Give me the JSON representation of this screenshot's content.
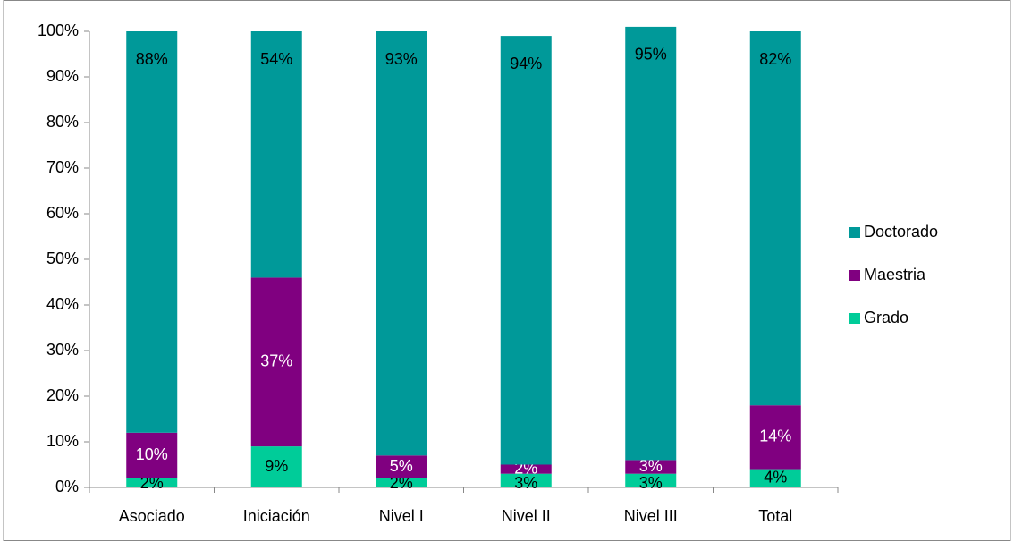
{
  "chart_data": {
    "type": "stacked-bar",
    "categories": [
      "Asociado",
      "Iniciación",
      "Nivel I",
      "Nivel II",
      "Nivel III",
      "Total"
    ],
    "series": [
      {
        "name": "Grado",
        "color": "#00cc99",
        "values": [
          2,
          9,
          2,
          3,
          3,
          4
        ],
        "value_labels": [
          "2%",
          "9%",
          "2%",
          "3%",
          "3%",
          "4%"
        ]
      },
      {
        "name": "Maestria",
        "color": "#800080",
        "values": [
          10,
          37,
          5,
          2,
          3,
          14
        ],
        "value_labels": [
          "10%",
          "37%",
          "5%",
          "2%",
          "3%",
          "14%"
        ]
      },
      {
        "name": "Doctorado",
        "color": "#009999",
        "values": [
          88,
          54,
          93,
          94,
          95,
          82
        ],
        "value_labels": [
          "88%",
          "54%",
          "93%",
          "94%",
          "95%",
          "82%"
        ]
      }
    ],
    "ylim": [
      0,
      100
    ],
    "yticks": [
      {
        "value": 0,
        "label": "0%"
      },
      {
        "value": 10,
        "label": "10%"
      },
      {
        "value": 20,
        "label": "20%"
      },
      {
        "value": 30,
        "label": "30%"
      },
      {
        "value": 40,
        "label": "40%"
      },
      {
        "value": 50,
        "label": "50%"
      },
      {
        "value": 60,
        "label": "60%"
      },
      {
        "value": 70,
        "label": "70%"
      },
      {
        "value": 80,
        "label": "80%"
      },
      {
        "value": 90,
        "label": "90%"
      },
      {
        "value": 100,
        "label": "100%"
      }
    ],
    "legend": "right"
  }
}
